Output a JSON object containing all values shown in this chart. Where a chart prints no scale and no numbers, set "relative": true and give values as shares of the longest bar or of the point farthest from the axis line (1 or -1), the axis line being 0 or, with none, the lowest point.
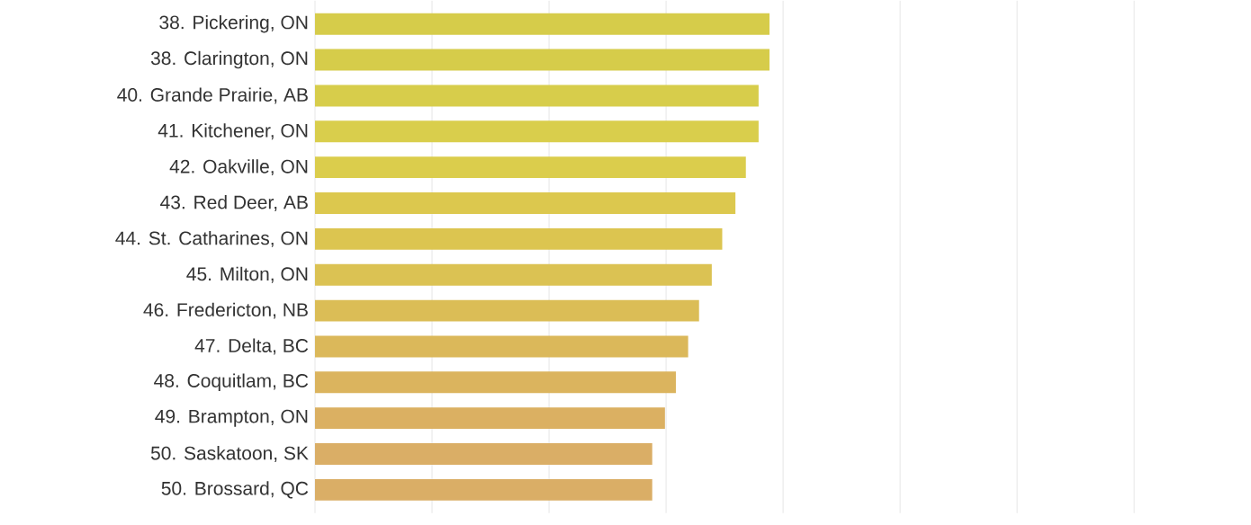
{
  "chart_data": {
    "type": "bar",
    "orientation": "horizontal",
    "relative": true,
    "grid": "x",
    "categories": [
      "38. Pickering, ON",
      "38. Clarington, ON",
      "40. Grande Prairie, AB",
      "41. Kitchener, ON",
      "42. Oakville, ON",
      "43. Red Deer, AB",
      "44. St. Catharines, ON",
      "45. Milton, ON",
      "46. Fredericton, NB",
      "47. Delta, BC",
      "48. Coquitlam, BC",
      "49. Brampton, ON",
      "50. Saskatoon, SK",
      "50. Brossard, QC"
    ],
    "values": [
      1,
      1,
      0.976,
      0.976,
      0.948,
      0.925,
      0.896,
      0.873,
      0.845,
      0.821,
      0.794,
      0.77,
      0.742,
      0.742
    ],
    "colors": [
      "#d6cc4a",
      "#d6cc4a",
      "#d7cd4b",
      "#d9ce4c",
      "#dbcd4c",
      "#dcc84e",
      "#dcc550",
      "#dbc253",
      "#dbbd56",
      "#dbb85a",
      "#dbb45e",
      "#dbb062",
      "#daae66",
      "#daae66"
    ]
  }
}
